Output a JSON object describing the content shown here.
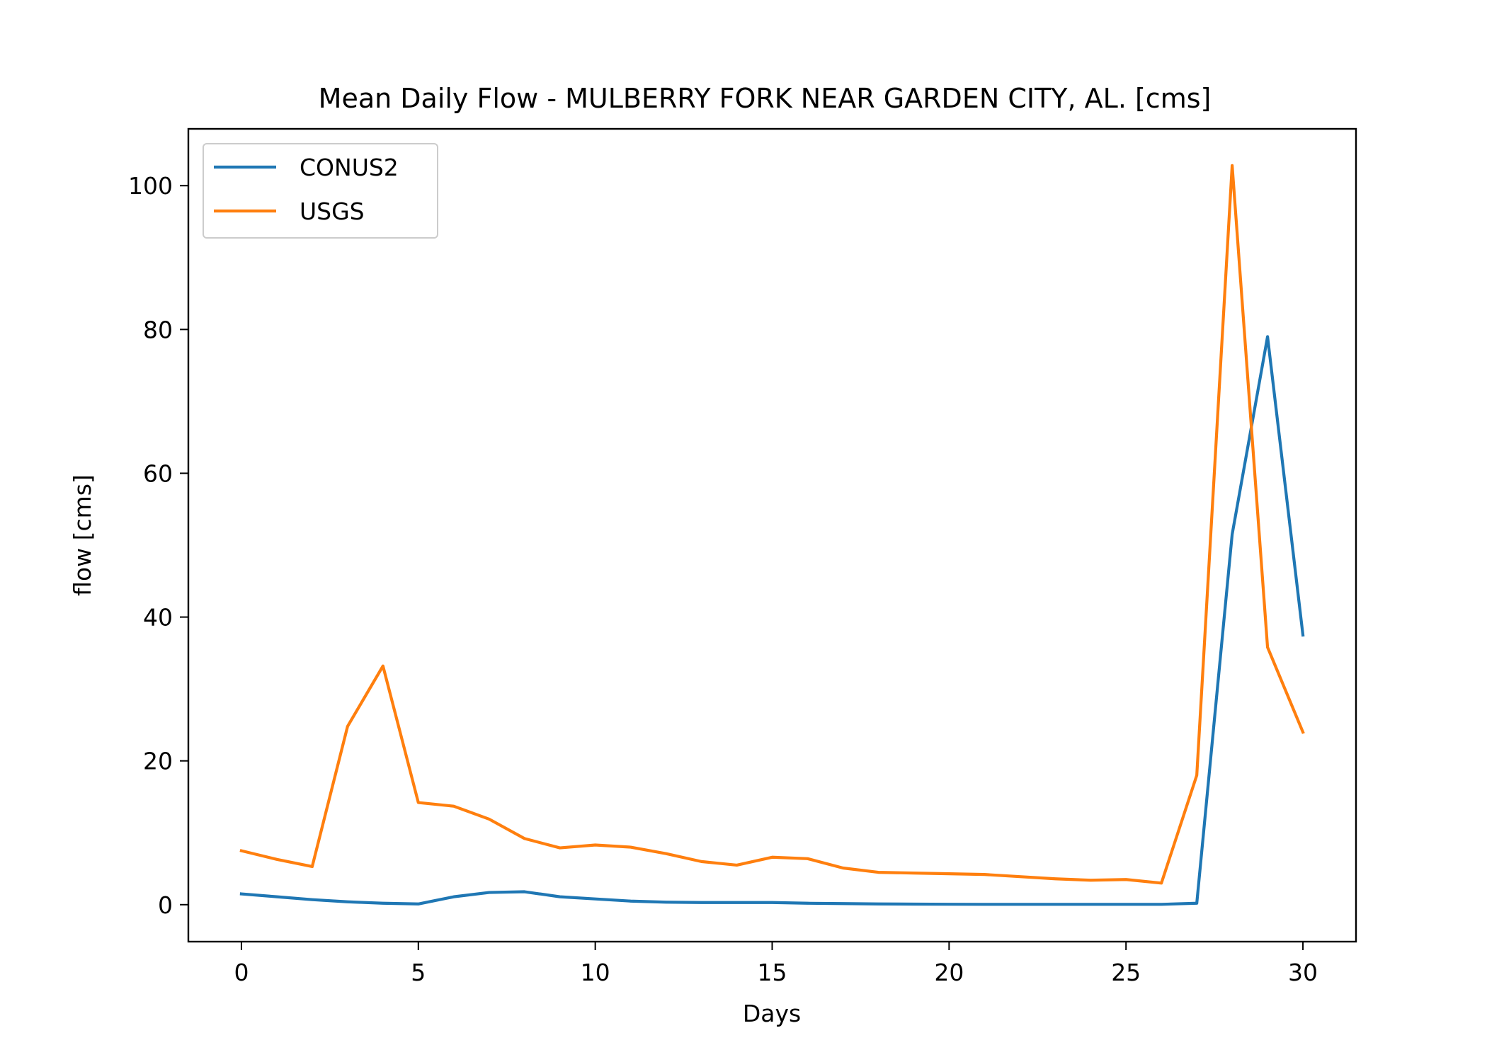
{
  "chart_data": {
    "type": "line",
    "title": "Mean Daily Flow - MULBERRY FORK NEAR GARDEN CITY, AL. [cms]",
    "xlabel": "Days",
    "ylabel": "flow [cms]",
    "xlim": [
      -1.5,
      31.5
    ],
    "ylim": [
      -5.14,
      107.9
    ],
    "xticks": [
      0,
      5,
      10,
      15,
      20,
      25,
      30
    ],
    "yticks": [
      0,
      20,
      40,
      60,
      80,
      100
    ],
    "grid": false,
    "legend_position": "upper-left",
    "x": [
      0,
      1,
      2,
      3,
      4,
      5,
      6,
      7,
      8,
      9,
      10,
      11,
      12,
      13,
      14,
      15,
      16,
      17,
      18,
      19,
      20,
      21,
      22,
      23,
      24,
      25,
      26,
      27,
      28,
      29,
      30
    ],
    "series": [
      {
        "name": "CONUS2",
        "color": "#1f77b4",
        "values": [
          1.5,
          1.1,
          0.7,
          0.4,
          0.2,
          0.1,
          1.1,
          1.7,
          1.8,
          1.1,
          0.8,
          0.5,
          0.35,
          0.3,
          0.3,
          0.3,
          0.2,
          0.15,
          0.1,
          0.08,
          0.06,
          0.05,
          0.05,
          0.05,
          0.05,
          0.05,
          0.05,
          0.2,
          51.5,
          79,
          37.5
        ]
      },
      {
        "name": "USGS",
        "color": "#ff7f0e",
        "values": [
          7.5,
          6.3,
          5.3,
          24.8,
          33.2,
          14.2,
          13.7,
          11.9,
          9.2,
          7.9,
          8.3,
          8.0,
          7.1,
          6.0,
          5.5,
          6.6,
          6.4,
          5.1,
          4.5,
          4.4,
          4.3,
          4.2,
          3.9,
          3.6,
          3.4,
          3.5,
          3.0,
          18.0,
          102.8,
          35.8,
          24.0
        ]
      }
    ]
  }
}
